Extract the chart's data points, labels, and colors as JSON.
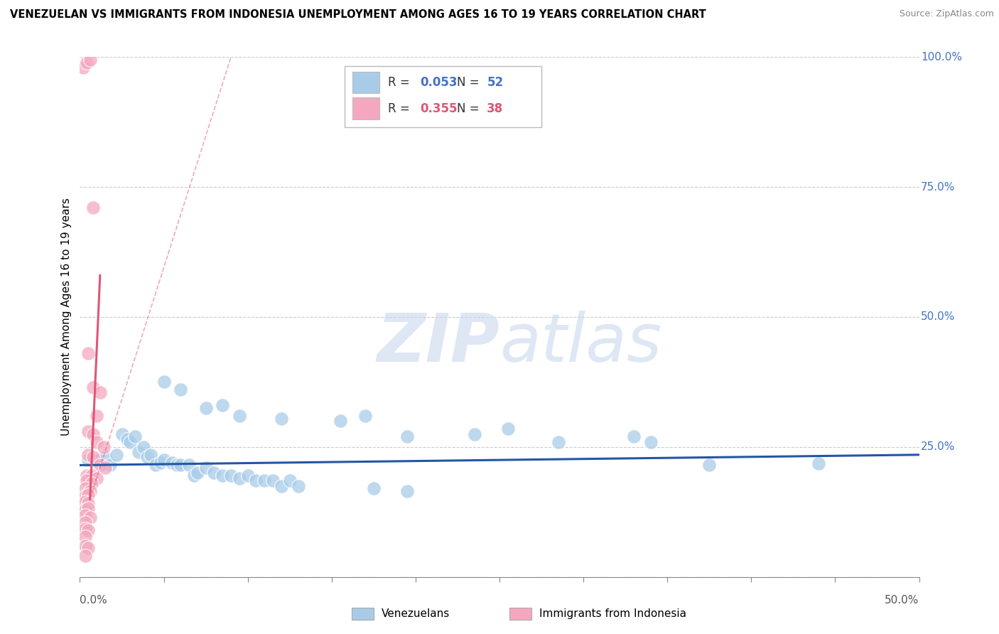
{
  "title": "VENEZUELAN VS IMMIGRANTS FROM INDONESIA UNEMPLOYMENT AMONG AGES 16 TO 19 YEARS CORRELATION CHART",
  "source": "Source: ZipAtlas.com",
  "ylabel": "Unemployment Among Ages 16 to 19 years",
  "legend_blue": {
    "R": "0.053",
    "N": "52",
    "label": "Venezuelans"
  },
  "legend_pink": {
    "R": "0.355",
    "N": "38",
    "label": "Immigrants from Indonesia"
  },
  "blue_color": "#a8cce8",
  "pink_color": "#f4a8bf",
  "blue_line_color": "#2456a4",
  "pink_line_color": "#e05575",
  "watermark_color": "#c8d8ec",
  "grid_color": "#cccccc",
  "right_label_color": "#4472c4",
  "xlim": [
    0.0,
    0.5
  ],
  "ylim": [
    0.0,
    1.0
  ],
  "blue_scatter": [
    [
      0.005,
      0.225
    ],
    [
      0.01,
      0.225
    ],
    [
      0.015,
      0.23
    ],
    [
      0.018,
      0.215
    ],
    [
      0.022,
      0.235
    ],
    [
      0.025,
      0.275
    ],
    [
      0.028,
      0.265
    ],
    [
      0.03,
      0.26
    ],
    [
      0.033,
      0.27
    ],
    [
      0.035,
      0.24
    ],
    [
      0.038,
      0.25
    ],
    [
      0.04,
      0.23
    ],
    [
      0.042,
      0.235
    ],
    [
      0.045,
      0.215
    ],
    [
      0.048,
      0.22
    ],
    [
      0.05,
      0.225
    ],
    [
      0.055,
      0.22
    ],
    [
      0.058,
      0.215
    ],
    [
      0.06,
      0.215
    ],
    [
      0.065,
      0.215
    ],
    [
      0.068,
      0.195
    ],
    [
      0.07,
      0.2
    ],
    [
      0.075,
      0.21
    ],
    [
      0.08,
      0.2
    ],
    [
      0.085,
      0.195
    ],
    [
      0.09,
      0.195
    ],
    [
      0.095,
      0.19
    ],
    [
      0.1,
      0.195
    ],
    [
      0.105,
      0.185
    ],
    [
      0.11,
      0.185
    ],
    [
      0.115,
      0.185
    ],
    [
      0.12,
      0.175
    ],
    [
      0.125,
      0.185
    ],
    [
      0.13,
      0.175
    ],
    [
      0.05,
      0.375
    ],
    [
      0.06,
      0.36
    ],
    [
      0.075,
      0.325
    ],
    [
      0.085,
      0.33
    ],
    [
      0.095,
      0.31
    ],
    [
      0.12,
      0.305
    ],
    [
      0.155,
      0.3
    ],
    [
      0.17,
      0.31
    ],
    [
      0.195,
      0.27
    ],
    [
      0.235,
      0.275
    ],
    [
      0.255,
      0.285
    ],
    [
      0.285,
      0.26
    ],
    [
      0.33,
      0.27
    ],
    [
      0.34,
      0.26
    ],
    [
      0.175,
      0.17
    ],
    [
      0.195,
      0.165
    ],
    [
      0.375,
      0.215
    ],
    [
      0.44,
      0.218
    ]
  ],
  "pink_scatter": [
    [
      0.002,
      0.98
    ],
    [
      0.004,
      0.99
    ],
    [
      0.006,
      0.995
    ],
    [
      0.008,
      0.71
    ],
    [
      0.005,
      0.43
    ],
    [
      0.008,
      0.365
    ],
    [
      0.012,
      0.355
    ],
    [
      0.01,
      0.31
    ],
    [
      0.005,
      0.28
    ],
    [
      0.008,
      0.275
    ],
    [
      0.01,
      0.26
    ],
    [
      0.014,
      0.25
    ],
    [
      0.005,
      0.235
    ],
    [
      0.008,
      0.23
    ],
    [
      0.012,
      0.215
    ],
    [
      0.015,
      0.21
    ],
    [
      0.004,
      0.195
    ],
    [
      0.007,
      0.195
    ],
    [
      0.01,
      0.19
    ],
    [
      0.004,
      0.185
    ],
    [
      0.007,
      0.18
    ],
    [
      0.003,
      0.17
    ],
    [
      0.006,
      0.165
    ],
    [
      0.003,
      0.155
    ],
    [
      0.005,
      0.158
    ],
    [
      0.003,
      0.145
    ],
    [
      0.005,
      0.142
    ],
    [
      0.003,
      0.13
    ],
    [
      0.005,
      0.132
    ],
    [
      0.003,
      0.118
    ],
    [
      0.006,
      0.115
    ],
    [
      0.003,
      0.105
    ],
    [
      0.003,
      0.092
    ],
    [
      0.005,
      0.09
    ],
    [
      0.003,
      0.078
    ],
    [
      0.003,
      0.06
    ],
    [
      0.005,
      0.055
    ],
    [
      0.003,
      0.04
    ]
  ],
  "blue_line": {
    "x0": 0.0,
    "y0": 0.215,
    "x1": 0.5,
    "y1": 0.235
  },
  "pink_line_solid": {
    "x0": 0.006,
    "y0": 0.15,
    "x1": 0.012,
    "y1": 0.58
  },
  "pink_line_dash": {
    "x0": 0.006,
    "y0": 0.15,
    "x1": 0.09,
    "y1": 1.0
  }
}
